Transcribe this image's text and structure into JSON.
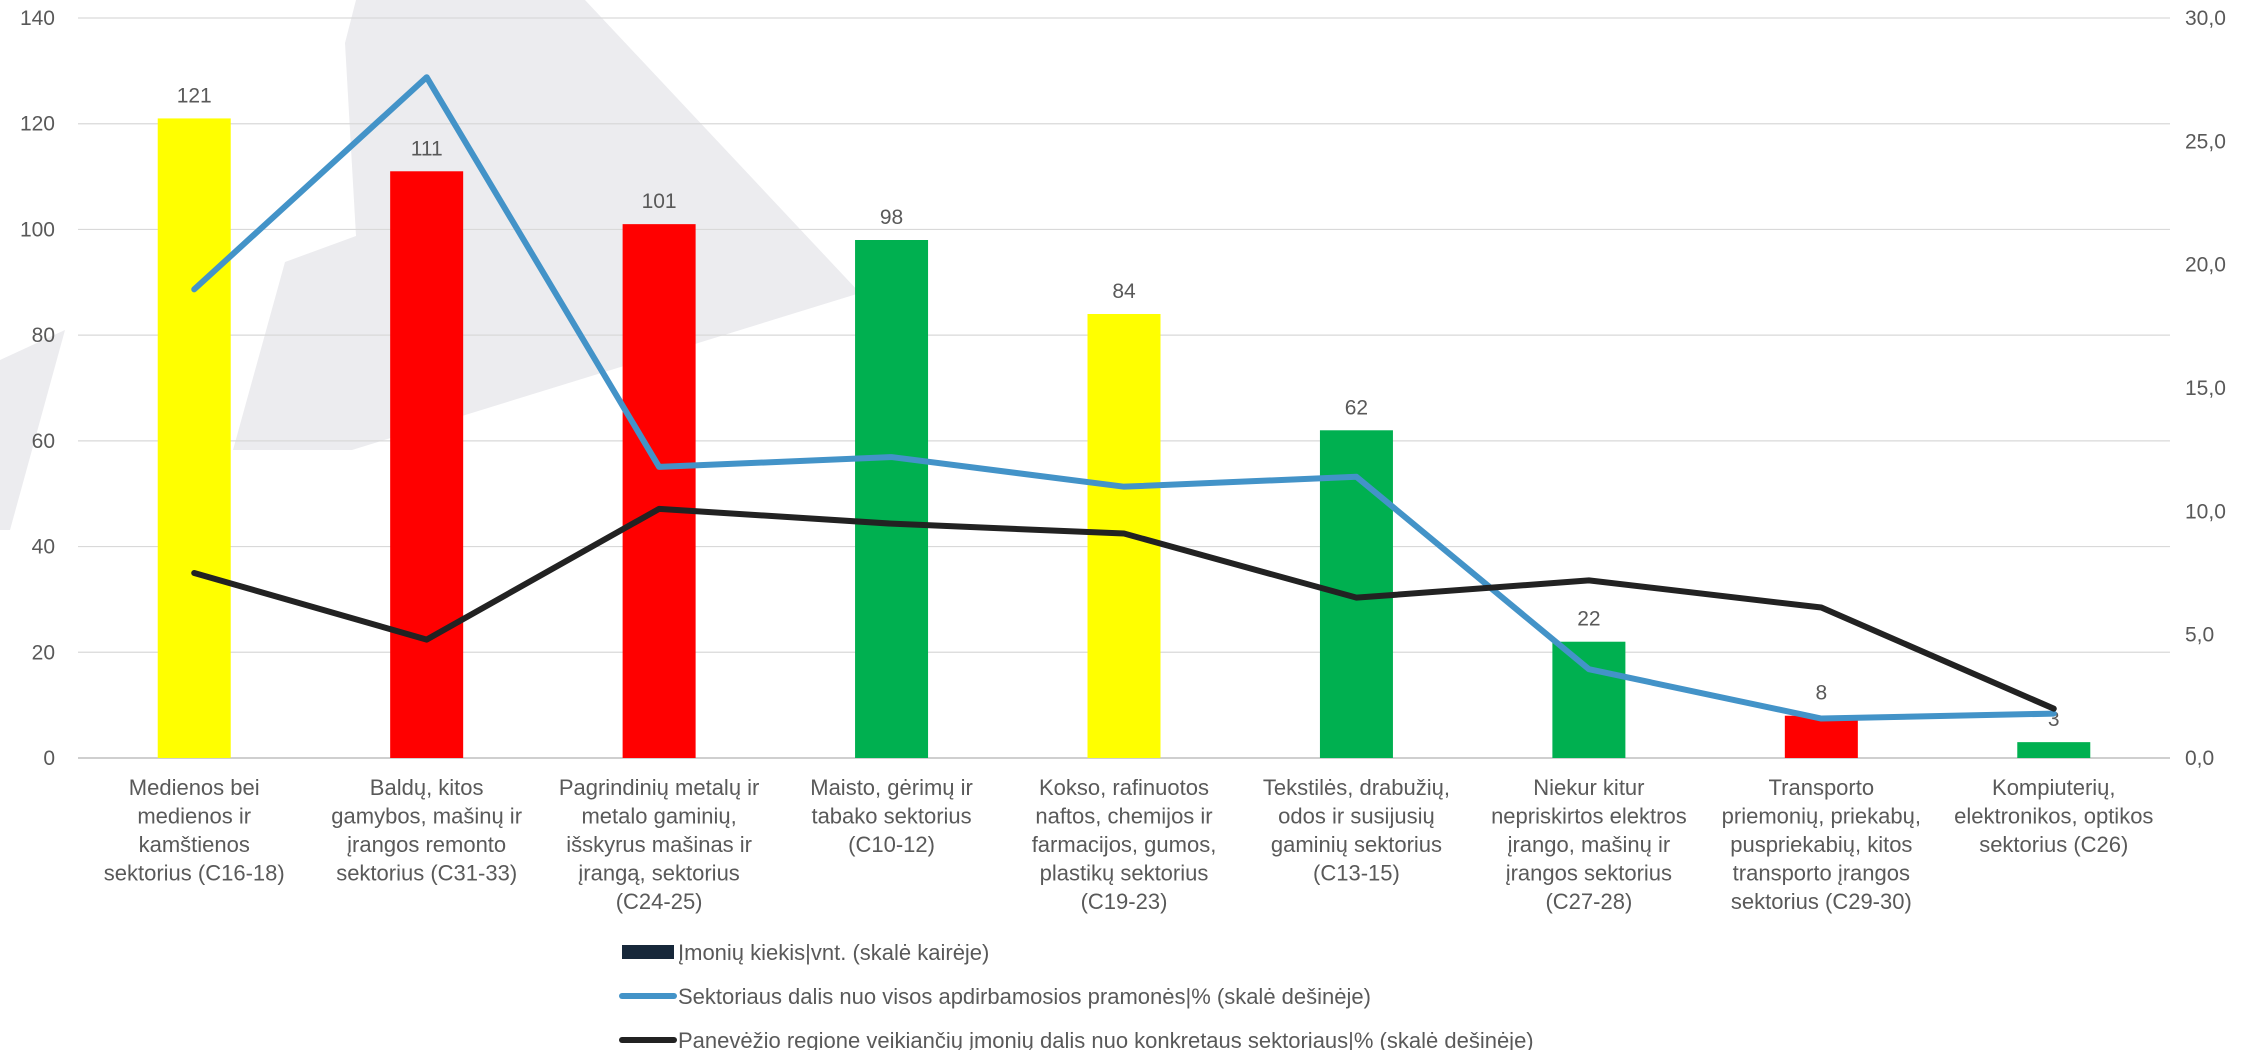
{
  "chart_data": {
    "type": "bar",
    "categories": [
      "Medienos bei medienos ir kamštienos sektorius (C16-18)",
      "Baldų, kitos gamybos, mašinų ir įrangos remonto sektorius (C31-33)",
      "Pagrindinių metalų ir metalo gaminių, išskyrus mašinas ir įrangą, sektorius (C24-25)",
      "Maisto, gėrimų ir tabako sektorius (C10-12)",
      "Kokso, rafinuotos naftos, chemijos ir farmacijos, gumos, plastikų sektorius (C19-23)",
      "Tekstilės, drabužių, odos ir susijusių gaminių sektorius (C13-15)",
      "Niekur kitur nepriskirtos elektros įrango, mašinų ir įrangos sektorius (C27-28)",
      "Transporto priemonių, priekabų, puspriekabių, kitos transporto įrangos sektorius (C29-30)",
      "Kompiuterių, elektronikos, optikos sektorius (C26)"
    ],
    "category_lines": [
      [
        "Medienos bei",
        "medienos ir",
        "kamštienos",
        "sektorius (C16-18)"
      ],
      [
        "Baldų, kitos",
        "gamybos, mašinų ir",
        "įrangos remonto",
        "sektorius (C31-33)"
      ],
      [
        "Pagrindinių metalų ir",
        "metalo gaminių,",
        "išskyrus mašinas ir",
        "įrangą, sektorius",
        "(C24-25)"
      ],
      [
        "Maisto, gėrimų ir",
        "tabako sektorius",
        "(C10-12)"
      ],
      [
        "Kokso, rafinuotos",
        "naftos, chemijos ir",
        "farmacijos, gumos,",
        "plastikų sektorius",
        "(C19-23)"
      ],
      [
        "Tekstilės, drabužių,",
        "odos ir susijusių",
        "gaminių sektorius",
        "(C13-15)"
      ],
      [
        "Niekur kitur",
        "nepriskirtos elektros",
        "įrango, mašinų ir",
        "įrangos sektorius",
        "(C27-28)"
      ],
      [
        "Transporto",
        "priemonių, priekabų,",
        "puspriekabių, kitos",
        "transporto įrangos",
        "sektorius (C29-30)"
      ],
      [
        "Kompiuterių,",
        "elektronikos, optikos",
        "sektorius (C26)"
      ]
    ],
    "series": [
      {
        "name": "Įmonių kiekis|vnt. (skalė kairėje)",
        "kind": "bar",
        "axis": "left",
        "values": [
          121,
          111,
          101,
          98,
          84,
          62,
          22,
          8,
          3
        ],
        "data_labels": [
          "121",
          "111",
          "101",
          "98",
          "84",
          "62",
          "22",
          "8",
          "3"
        ],
        "colors": [
          "#FFFF00",
          "#FF0000",
          "#FF0000",
          "#00B050",
          "#FFFF00",
          "#00B050",
          "#00B050",
          "#FF0000",
          "#00B050"
        ],
        "legend_color": "#17283A"
      },
      {
        "name": "Sektoriaus dalis nuo visos apdirbamosios pramonės|% (skalė dešinėje)",
        "kind": "line",
        "axis": "right",
        "values": [
          19.0,
          27.6,
          11.8,
          12.2,
          11.0,
          11.4,
          3.6,
          1.6,
          1.8
        ],
        "color": "#4393C8"
      },
      {
        "name": "Panevėžio regione veikiančių įmonių dalis nuo konkretaus sektoriaus|% (skalė dešinėje)",
        "kind": "line",
        "axis": "right",
        "values": [
          7.5,
          4.8,
          10.1,
          9.5,
          9.1,
          6.5,
          7.2,
          6.1,
          2.0
        ],
        "color": "#222222"
      }
    ],
    "left_axis": {
      "ylim": [
        0,
        140
      ],
      "ticks": [
        0,
        20,
        40,
        60,
        80,
        100,
        120,
        140
      ],
      "tick_labels": [
        "0",
        "20",
        "40",
        "60",
        "80",
        "100",
        "120",
        "140"
      ]
    },
    "right_axis": {
      "ylim": [
        0,
        30
      ],
      "ticks": [
        0,
        5,
        10,
        15,
        20,
        25,
        30
      ],
      "tick_labels": [
        "0,0",
        "5,0",
        "10,0",
        "15,0",
        "20,0",
        "25,0",
        "30,0"
      ]
    },
    "grid": true,
    "legend_position": "bottom",
    "title": "",
    "xlabel": "",
    "ylabel": ""
  }
}
